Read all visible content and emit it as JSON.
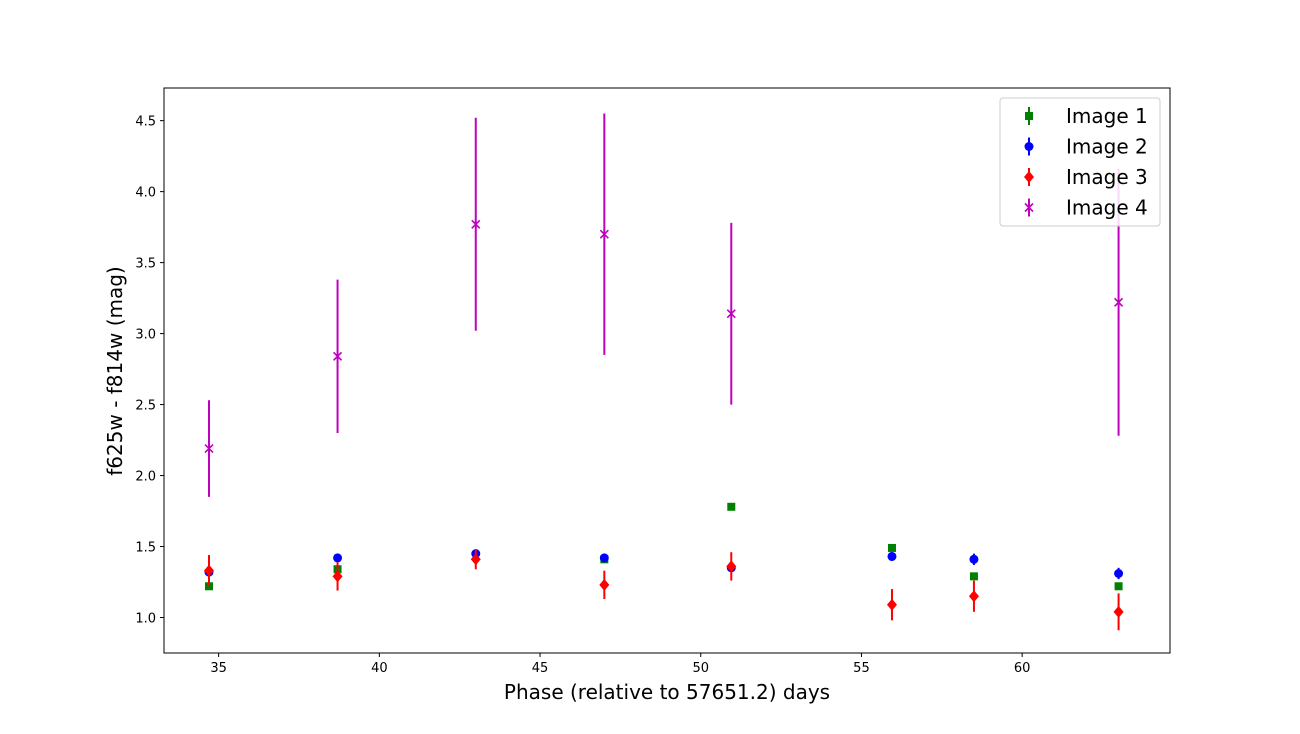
{
  "chart_data": {
    "type": "scatter",
    "title": "",
    "xlabel": "Phase (relative to 57651.2) days",
    "ylabel": "f625w - f814w (mag)",
    "xlim": [
      33.3,
      64.6
    ],
    "ylim": [
      0.75,
      4.73
    ],
    "xticks": [
      35,
      40,
      45,
      50,
      55,
      60
    ],
    "yticks": [
      1.0,
      1.5,
      2.0,
      2.5,
      3.0,
      3.5,
      4.0,
      4.5
    ],
    "grid": false,
    "legend_position": "top-right",
    "series": [
      {
        "name": "Image 1",
        "marker": "square",
        "color": "#008000",
        "points": [
          {
            "x": 34.7,
            "y": 1.22,
            "err": 0.01
          },
          {
            "x": 38.7,
            "y": 1.34,
            "err": 0.01
          },
          {
            "x": 47.0,
            "y": 1.41,
            "err": 0.01
          },
          {
            "x": 50.95,
            "y": 1.78,
            "err": 0.01
          },
          {
            "x": 55.95,
            "y": 1.49,
            "err": 0.01
          },
          {
            "x": 58.5,
            "y": 1.29,
            "err": 0.01
          },
          {
            "x": 63.0,
            "y": 1.22,
            "err": 0.01
          }
        ]
      },
      {
        "name": "Image 2",
        "marker": "circle",
        "color": "#0000ff",
        "points": [
          {
            "x": 34.7,
            "y": 1.32,
            "err": 0.03
          },
          {
            "x": 38.7,
            "y": 1.42,
            "err": 0.03
          },
          {
            "x": 43.0,
            "y": 1.45,
            "err": 0.03
          },
          {
            "x": 47.0,
            "y": 1.42,
            "err": 0.03
          },
          {
            "x": 50.95,
            "y": 1.35,
            "err": 0.03
          },
          {
            "x": 55.95,
            "y": 1.43,
            "err": 0.03
          },
          {
            "x": 58.5,
            "y": 1.41,
            "err": 0.04
          },
          {
            "x": 63.0,
            "y": 1.31,
            "err": 0.04
          }
        ]
      },
      {
        "name": "Image 3",
        "marker": "diamond",
        "color": "#ff0000",
        "points": [
          {
            "x": 34.7,
            "y": 1.33,
            "err": 0.11
          },
          {
            "x": 38.7,
            "y": 1.29,
            "err": 0.1
          },
          {
            "x": 43.0,
            "y": 1.41,
            "err": 0.07
          },
          {
            "x": 47.0,
            "y": 1.23,
            "err": 0.1
          },
          {
            "x": 50.95,
            "y": 1.36,
            "err": 0.1
          },
          {
            "x": 55.95,
            "y": 1.09,
            "err": 0.11
          },
          {
            "x": 58.5,
            "y": 1.15,
            "err": 0.11
          },
          {
            "x": 63.0,
            "y": 1.04,
            "err": 0.13
          }
        ]
      },
      {
        "name": "Image 4",
        "marker": "x",
        "color": "#bf00bf",
        "points": [
          {
            "x": 34.7,
            "y": 2.19,
            "err": 0.34
          },
          {
            "x": 38.7,
            "y": 2.84,
            "err": 0.54
          },
          {
            "x": 43.0,
            "y": 3.77,
            "err": 0.75
          },
          {
            "x": 47.0,
            "y": 3.7,
            "err": 0.85
          },
          {
            "x": 50.95,
            "y": 3.14,
            "err": 0.64
          },
          {
            "x": 63.0,
            "y": 3.22,
            "err": 0.94
          }
        ]
      }
    ]
  }
}
